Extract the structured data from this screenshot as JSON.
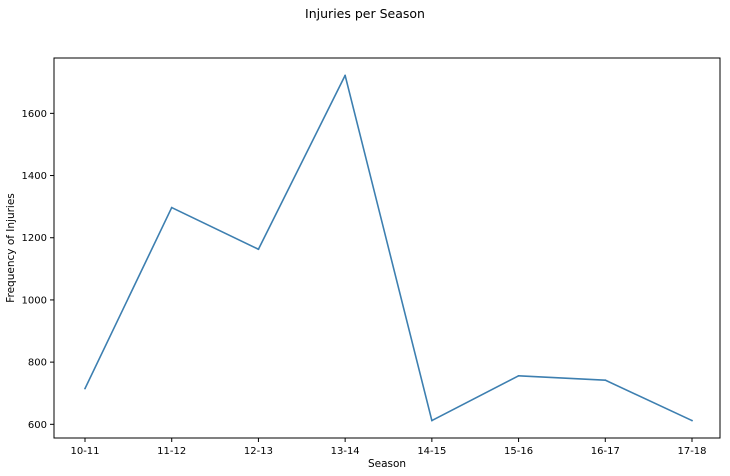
{
  "chart_data": {
    "type": "line",
    "title": "Injuries per Season",
    "xlabel": "Season",
    "ylabel": "Frequency of Injuries",
    "categories": [
      "10-11",
      "11-12",
      "12-13",
      "13-14",
      "14-15",
      "15-16",
      "16-17",
      "17-18"
    ],
    "series": [
      {
        "values": [
          715,
          1297,
          1163,
          1722,
          612,
          756,
          742,
          612
        ]
      }
    ],
    "ylim": [
      556,
      1778
    ],
    "yticks": [
      600,
      800,
      1000,
      1200,
      1400,
      1600
    ],
    "grid": false,
    "legend": "none",
    "colors": {
      "line": "#3d7fb0",
      "axes": "#000000",
      "background": "#ffffff"
    }
  }
}
